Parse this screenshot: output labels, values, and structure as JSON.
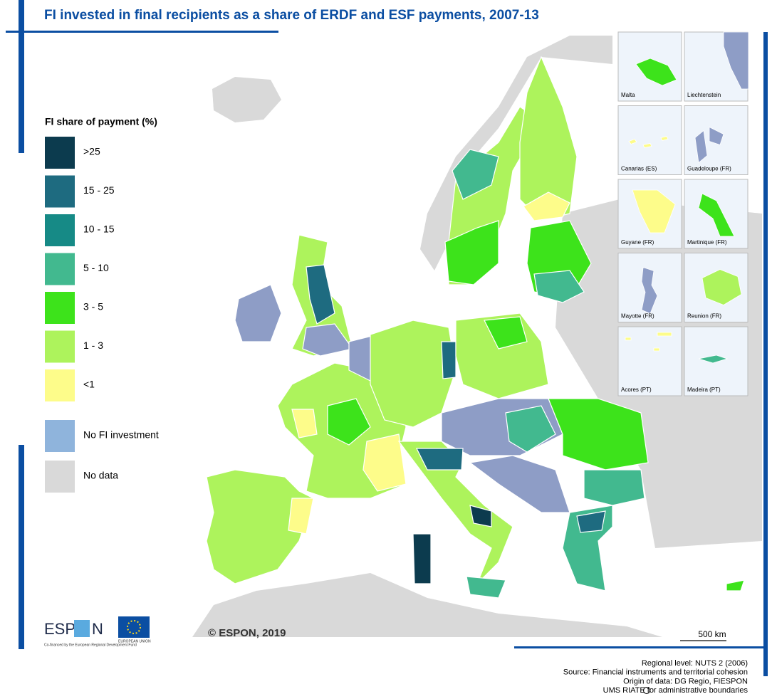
{
  "title": "FI invested in final recipients as a share of ERDF and ESF payments, 2007-13",
  "legend": {
    "title": "FI share of payment (%)",
    "items": [
      {
        "label": ">25",
        "color": "#0c3b4e"
      },
      {
        "label": "15 - 25",
        "color": "#1e6b80"
      },
      {
        "label": "10 - 15",
        "color": "#168a86"
      },
      {
        "label": "5 - 10",
        "color": "#42b98f"
      },
      {
        "label": "3 - 5",
        "color": "#3de31b"
      },
      {
        "label": "1 - 3",
        "color": "#adf35c"
      },
      {
        "label": "<1",
        "color": "#fdfc8a"
      },
      {
        "label": "No FI investment",
        "color": "#8fb4dc"
      },
      {
        "label": "No data",
        "color": "#d9d9d9"
      }
    ]
  },
  "insets": [
    {
      "label": "Malta",
      "color": "#3de31b"
    },
    {
      "label": "Liechtenstein",
      "color": "#8e9dc6"
    },
    {
      "label": "Canarias (ES)",
      "color": "#fdfc8a"
    },
    {
      "label": "Guadeloupe (FR)",
      "color": "#8e9dc6"
    },
    {
      "label": "Guyane (FR)",
      "color": "#fdfc8a"
    },
    {
      "label": "Martinique (FR)",
      "color": "#3de31b"
    },
    {
      "label": "Mayotte (FR)",
      "color": "#8e9dc6"
    },
    {
      "label": "Reunion (FR)",
      "color": "#adf35c"
    },
    {
      "label": "Acores (PT)",
      "color": "#fdfc8a"
    },
    {
      "label": "Madeira (PT)",
      "color": "#42b98f"
    }
  ],
  "copyright": "© ESPON, 2019",
  "scale": "500 km",
  "logo": {
    "left": "ESP",
    "right": "N",
    "cofinanced": "Co-financed by the European Regional Development Fund",
    "eu": "EUROPEAN UNION"
  },
  "source": [
    "Regional level: NUTS 2 (2006)",
    "Source: Financial instruments and territorial cohesion",
    "Origin of data: DG Regio, FIESPON",
    "UMS RIATE for administrative boundaries"
  ]
}
